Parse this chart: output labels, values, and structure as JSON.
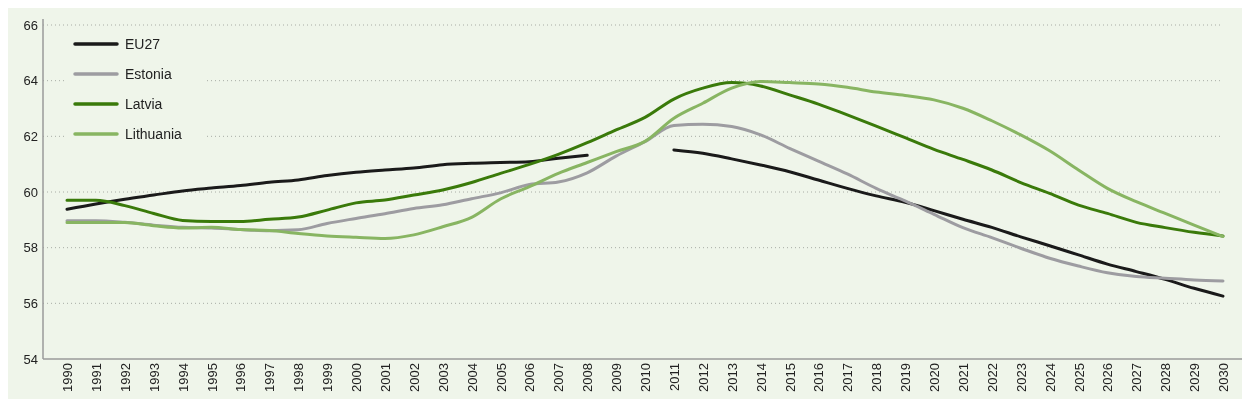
{
  "chart_data": {
    "type": "line",
    "categories": [
      "1990",
      "1991",
      "1992",
      "1993",
      "1994",
      "1995",
      "1996",
      "1997",
      "1998",
      "1999",
      "2000",
      "2001",
      "2002",
      "2003",
      "2004",
      "2005",
      "2006",
      "2007",
      "2008",
      "2009",
      "2010",
      "2011",
      "2012",
      "2013",
      "2014",
      "2015",
      "2016",
      "2017",
      "2018",
      "2019",
      "2020",
      "2021",
      "2022",
      "2023",
      "2024",
      "2025",
      "2026",
      "2027",
      "2028",
      "2029",
      "2030"
    ],
    "series": [
      {
        "name": "EU27",
        "color": "#1a1a1a",
        "values": [
          59.38,
          59.57,
          59.74,
          59.89,
          60.04,
          60.14,
          60.23,
          60.35,
          60.43,
          60.59,
          60.71,
          60.79,
          60.86,
          60.98,
          61.03,
          61.06,
          61.09,
          61.21,
          61.32,
          null,
          null,
          61.51,
          61.39,
          61.19,
          60.97,
          60.73,
          60.43,
          60.13,
          59.86,
          59.63,
          59.33,
          59.02,
          58.73,
          58.39,
          58.07,
          57.74,
          57.41,
          57.14,
          56.86,
          56.54,
          56.26
        ]
      },
      {
        "name": "Estonia",
        "color": "#9d9ca1",
        "values": [
          58.97,
          58.97,
          58.91,
          58.81,
          58.73,
          58.71,
          58.65,
          58.61,
          58.64,
          58.87,
          59.05,
          59.22,
          59.41,
          59.54,
          59.76,
          59.97,
          60.27,
          60.36,
          60.69,
          61.29,
          61.81,
          62.39,
          62.43,
          62.35,
          62.05,
          61.57,
          61.11,
          60.65,
          60.13,
          59.68,
          59.2,
          58.72,
          58.36,
          57.98,
          57.62,
          57.34,
          57.1,
          56.96,
          56.9,
          56.84,
          56.8
        ]
      },
      {
        "name": "Latvia",
        "color": "#3a7a0a",
        "values": [
          59.7,
          59.7,
          59.51,
          59.23,
          58.98,
          58.94,
          58.94,
          59.02,
          59.1,
          59.35,
          59.61,
          59.71,
          59.89,
          60.07,
          60.34,
          60.67,
          60.99,
          61.35,
          61.77,
          62.23,
          62.68,
          63.34,
          63.73,
          63.93,
          63.81,
          63.49,
          63.16,
          62.77,
          62.37,
          61.95,
          61.53,
          61.17,
          60.79,
          60.34,
          59.95,
          59.53,
          59.23,
          58.91,
          58.72,
          58.55,
          58.42
        ]
      },
      {
        "name": "Lithuania",
        "color": "#88b562",
        "values": [
          58.9,
          58.9,
          58.9,
          58.79,
          58.71,
          58.73,
          58.65,
          58.62,
          58.51,
          58.42,
          58.37,
          58.33,
          58.46,
          58.75,
          59.09,
          59.75,
          60.19,
          60.67,
          61.06,
          61.45,
          61.82,
          62.65,
          63.19,
          63.73,
          63.97,
          63.93,
          63.88,
          63.76,
          63.59,
          63.47,
          63.31,
          63.01,
          62.56,
          62.05,
          61.48,
          60.79,
          60.13,
          59.65,
          59.23,
          58.81,
          58.4
        ]
      }
    ],
    "ylim": [
      54,
      66
    ],
    "yticks": [
      54,
      56,
      58,
      60,
      62,
      64,
      66
    ],
    "grid": "y",
    "legend": "top left",
    "line_style": "solid",
    "marker": "none"
  }
}
